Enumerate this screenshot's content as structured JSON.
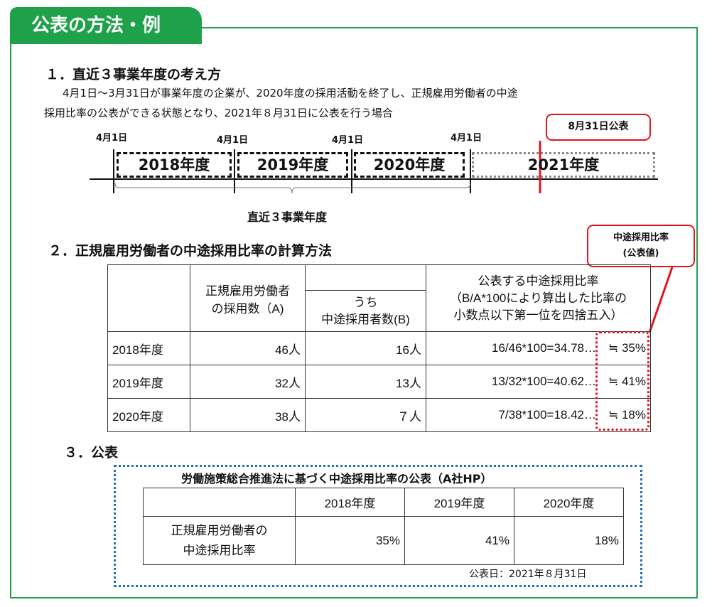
{
  "header": {
    "title": "公表の方法・例"
  },
  "section1": {
    "heading": "１．直近３事業年度の考え方",
    "intro_line1": "4月1日～3月31日が事業年度の企業が、2020年度の採用活動を終了し、正規雇用労働者の中途",
    "intro_line2": "採用比率の公表ができる状態となり、2021年８月31日に公表を行う場合",
    "april_labels": [
      "4月1日",
      "4月1日",
      "4月1日",
      "4月1日"
    ],
    "years": [
      "2018年度",
      "2019年度",
      "2020年度",
      "2021年度"
    ],
    "callout": "8月31日公表",
    "brace_label": "直近３事業年度"
  },
  "section2": {
    "heading": "２．正規雇用労働者の中途採用比率の計算方法",
    "callout_line1": "中途採用比率",
    "callout_line2": "(公表値)",
    "col_a_line1": "正規雇用労働者",
    "col_a_line2": "の採用数（A)",
    "col_b_line1": "うち",
    "col_b_line2": "中途採用者数(B)",
    "col_c_line1": "公表する中途採用比率",
    "col_c_line2": "（B/A*100により算出した比率の",
    "col_c_line3": "小数点以下第一位を四捨五入）",
    "rows": [
      {
        "year": "2018年度",
        "a": "46人",
        "b": "16人",
        "calc": "16/46*100=34.78…",
        "result": "≒ 35%"
      },
      {
        "year": "2019年度",
        "a": "32人",
        "b": "13人",
        "calc": "13/32*100=40.62…",
        "result": "≒ 41%"
      },
      {
        "year": "2020年度",
        "a": "38人",
        "b": "７人",
        "calc": "7/38*100=18.42…",
        "result": "≒ 18%"
      }
    ]
  },
  "section3": {
    "heading": "３．公表",
    "box_title": "労働施策総合推進法に基づく中途採用比率の公表（A社HP）",
    "years": [
      "2018年度",
      "2019年度",
      "2020年度"
    ],
    "row_label_line1": "正規雇用労働者の",
    "row_label_line2": "中途採用比率",
    "values": [
      "35%",
      "41%",
      "18%"
    ],
    "date": "公表日：2021年８月31日"
  },
  "colors": {
    "green": "#1ea14a",
    "red": "#e4141e",
    "blue": "#1f6fb8"
  }
}
